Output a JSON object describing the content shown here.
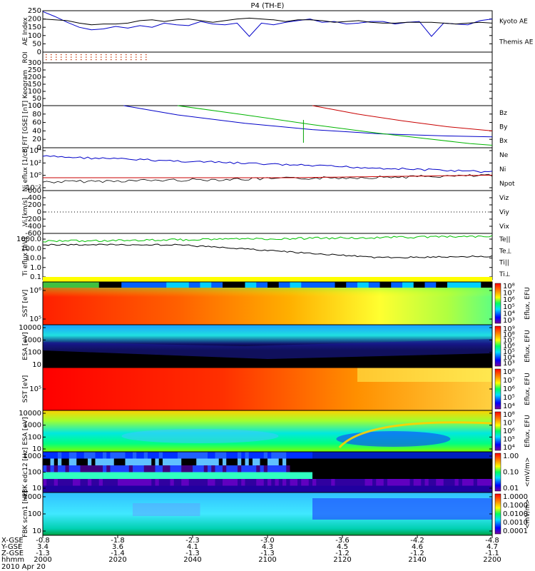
{
  "chart_data": {
    "type": "line",
    "title": "P4 (TH-E)",
    "date": "2010 Apr 20",
    "time_axis": {
      "labels": [
        "2000",
        "2020",
        "2040",
        "2100",
        "2120",
        "2140",
        "2200"
      ],
      "x_gse": [
        "-0.8",
        "-1.8",
        "-2.3",
        "-3.0",
        "-3.6",
        "-4.2",
        "-4.8"
      ],
      "y_gse": [
        "3.4",
        "3.6",
        "4.1",
        "4.3",
        "4.5",
        "4.6",
        "4.7"
      ],
      "z_gse": [
        "-1.3",
        "-1.4",
        "-1.3",
        "-1.3",
        "-1.2",
        "-1.2",
        "-1.1"
      ],
      "row_labels": [
        "X-GSE",
        "Y-GSE",
        "Z-GSE",
        "hhmm"
      ]
    },
    "panels": [
      {
        "id": "ae",
        "ylabel": "AE Index",
        "ylim": [
          0,
          250
        ],
        "yticks": [
          "0",
          "50",
          "100",
          "150",
          "200",
          "250"
        ],
        "legend": [
          {
            "name": "Kyoto AE",
            "color": "#0000c8"
          },
          {
            "name": "Themis AE",
            "color": "#000000"
          }
        ],
        "series": [
          {
            "name": "Kyoto AE",
            "color": "#0000c8",
            "values": [
              245,
              215,
              180,
              150,
              135,
              140,
              155,
              145,
              160,
              150,
              175,
              165,
              160,
              185,
              170,
              165,
              175,
              95,
              175,
              165,
              180,
              190,
              200,
              180,
              185,
              170,
              175,
              185,
              185,
              170,
              180,
              185,
              95,
              175,
              170,
              165,
              190,
              200
            ]
          },
          {
            "name": "Themis AE",
            "color": "#000000",
            "values": [
              200,
              195,
              190,
              175,
              165,
              170,
              170,
              175,
              190,
              195,
              185,
              195,
              200,
              190,
              180,
              190,
              200,
              205,
              200,
              195,
              185,
              195,
              195,
              190,
              180,
              185,
              190,
              180,
              175,
              175,
              180,
              180,
              180,
              175,
              170,
              175,
              180,
              175
            ]
          }
        ]
      },
      {
        "id": "roi",
        "ylabel": "ROI"
      },
      {
        "id": "keogram",
        "ylabel": "Keogram",
        "ylim": [
          0,
          300
        ],
        "yticks": [
          "0",
          "50",
          "100",
          "150",
          "200",
          "250",
          "300"
        ]
      },
      {
        "id": "bfield",
        "ylabel": "B_FIT [GSE] [nT]",
        "ylim": [
          0,
          100
        ],
        "yticks": [
          "0",
          "20",
          "40",
          "60",
          "80",
          "100"
        ],
        "legend": [
          {
            "name": "Bz",
            "color": "#c80000"
          },
          {
            "name": "By",
            "color": "#00b400"
          },
          {
            "name": "Bx",
            "color": "#0000c8"
          }
        ],
        "series": [
          {
            "name": "Bx",
            "color": "#0000c8",
            "x": [
              0.18,
              0.3,
              0.45,
              0.6,
              0.75,
              0.9,
              1.0
            ],
            "values": [
              100,
              78,
              58,
              43,
              33,
              28,
              26
            ]
          },
          {
            "name": "By",
            "color": "#00b400",
            "x": [
              0.3,
              0.45,
              0.6,
              0.75,
              0.85,
              0.95,
              1.0
            ],
            "values": [
              100,
              78,
              55,
              34,
              22,
              10,
              6
            ]
          },
          {
            "name": "Bz",
            "color": "#c80000",
            "x": [
              0.6,
              0.7,
              0.8,
              0.9,
              1.0
            ],
            "values": [
              100,
              80,
              64,
              50,
              40
            ]
          }
        ]
      },
      {
        "id": "density",
        "ylabel": "Ni eflux [1/cc]",
        "yticks": [
          "10⁻²",
          "10⁰",
          "10²",
          "10⁴"
        ],
        "legend": [
          {
            "name": "Ne",
            "color": "#c80000"
          },
          {
            "name": "Ni",
            "color": "#000000"
          },
          {
            "name": "Npot",
            "color": "#0000c8"
          }
        ]
      },
      {
        "id": "velocity",
        "ylabel": "Vi [km/s]",
        "ylim": [
          -600,
          600
        ],
        "yticks": [
          "-600",
          "-400",
          "-200",
          "0",
          "200",
          "400",
          "600"
        ],
        "legend": [
          {
            "name": "Viz",
            "color": "#c80000"
          },
          {
            "name": "Viy",
            "color": "#00b400"
          },
          {
            "name": "Vix",
            "color": "#0000c8"
          }
        ]
      },
      {
        "id": "temperature",
        "ylabel": "Ti eflux [eV]",
        "yticks": [
          "0.1",
          "1.0",
          "10.0",
          "100.0",
          "1000.0"
        ],
        "legend": [
          {
            "name": "Te||",
            "color": "#000000"
          },
          {
            "name": "Te⊥",
            "color": "#c80000"
          },
          {
            "name": "Ti||",
            "color": "#00b400"
          },
          {
            "name": "Ti⊥",
            "color": "#0000c8"
          }
        ]
      },
      {
        "id": "sst_e",
        "ylabel": "SST [eV]",
        "yticks": [
          "10⁵",
          "10⁶"
        ],
        "colorbar_label": "Eflux, EFU",
        "colorbar_ticks": [
          "10⁸",
          "10⁷",
          "10⁶",
          "10⁵",
          "10⁴",
          "10³"
        ]
      },
      {
        "id": "esa_e",
        "ylabel": "ESA [eV]",
        "yticks": [
          "10",
          "100",
          "1000",
          "10000"
        ],
        "colorbar_label": "Eflux, EFU",
        "colorbar_ticks": [
          "10⁹",
          "10⁸",
          "10⁷",
          "10⁶",
          "10⁵",
          "10⁴",
          "10³"
        ]
      },
      {
        "id": "sst_i",
        "ylabel": "SST [eV]",
        "yticks": [
          "10⁵"
        ],
        "colorbar_label": "Eflux, EFU",
        "colorbar_ticks": [
          "10⁸",
          "10⁷",
          "10⁶",
          "10⁵",
          "10⁴"
        ]
      },
      {
        "id": "esa_i",
        "ylabel": "ESA [eV]",
        "yticks": [
          "10",
          "100",
          "1000",
          "10000"
        ],
        "colorbar_label": "Eflux, EFU",
        "colorbar_ticks": [
          "10⁸",
          "10⁷",
          "10⁶",
          "10⁵",
          "10⁴"
        ]
      },
      {
        "id": "fbk_e",
        "ylabel": "FBK edc12 [Hz]",
        "yticks": [
          "10",
          "100",
          "1000"
        ],
        "colorbar_label": "<mV/m>",
        "colorbar_ticks": [
          "1.00",
          "0.10",
          "0.01"
        ]
      },
      {
        "id": "fbk_b",
        "ylabel": "FBK scm1 [Hz]",
        "yticks": [
          "10",
          "100",
          "1000"
        ],
        "colorbar_label": "<mV/m>",
        "colorbar_ticks": [
          "1.0000",
          "0.1000",
          "0.0100",
          "0.0010",
          "0.0001"
        ]
      }
    ]
  }
}
